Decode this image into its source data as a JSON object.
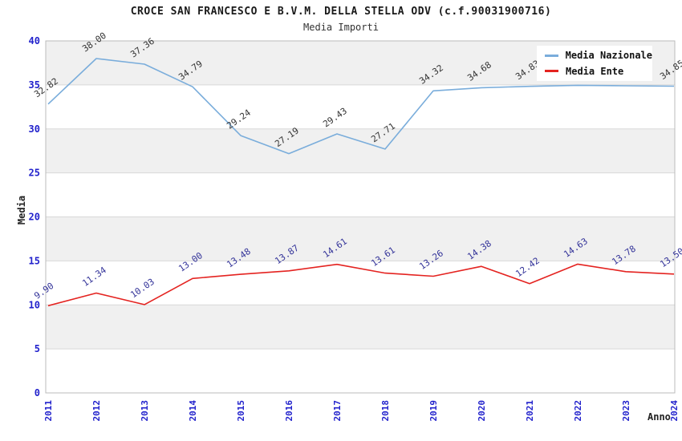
{
  "page": {
    "title": "CROCE SAN FRANCESCO E B.V.M. DELLA STELLA ODV (c.f.90031900716)",
    "subtitle": "Media Importi"
  },
  "chart_data": {
    "type": "line",
    "title": "CROCE SAN FRANCESCO E B.V.M. DELLA STELLA ODV (c.f.90031900716)",
    "subtitle": "Media Importi",
    "xlabel": "Anno",
    "ylabel": "Media",
    "x": [
      2011,
      2012,
      2013,
      2014,
      2015,
      2016,
      2017,
      2018,
      2019,
      2020,
      2021,
      2022,
      2023,
      2024
    ],
    "ylim": [
      0,
      40
    ],
    "yticks": [
      0,
      5,
      10,
      15,
      20,
      25,
      30,
      35,
      40
    ],
    "grid": "horizontal bands, alternating white/gray between ticks of 5",
    "legend_position": "top-right",
    "legend_entries": [
      "Media Nazionale",
      "Media Ente"
    ],
    "series": [
      {
        "name": "Media Nazionale",
        "color": "#7aaddb",
        "label_color": "#333333",
        "values": [
          32.82,
          38.0,
          37.36,
          34.79,
          29.24,
          27.19,
          29.43,
          27.71,
          34.32,
          34.68,
          34.83,
          34.95,
          34.9,
          34.85
        ],
        "point_labels": [
          "32.82",
          "38.00",
          "37.36",
          "34.79",
          "29.24",
          "27.19",
          "29.43",
          "27.71",
          "34.32",
          "34.68",
          "34.83",
          "",
          "",
          "34.85"
        ]
      },
      {
        "name": "Media Ente",
        "color": "#e42320",
        "label_color": "#333399",
        "values": [
          9.9,
          11.34,
          10.03,
          13.0,
          13.48,
          13.87,
          14.61,
          13.61,
          13.26,
          14.38,
          12.42,
          14.63,
          13.78,
          13.5
        ],
        "point_labels": [
          "9.90",
          "11.34",
          "10.03",
          "13.00",
          "13.48",
          "13.87",
          "14.61",
          "13.61",
          "13.26",
          "14.38",
          "12.42",
          "14.63",
          "13.78",
          "13.50"
        ]
      }
    ]
  },
  "colors": {
    "tick_label_blue": "#2222cc",
    "band_gray": "#f0f0f0",
    "gridline": "#d8d8d8",
    "plot_border": "#bbbbbb",
    "background": "#ffffff"
  }
}
